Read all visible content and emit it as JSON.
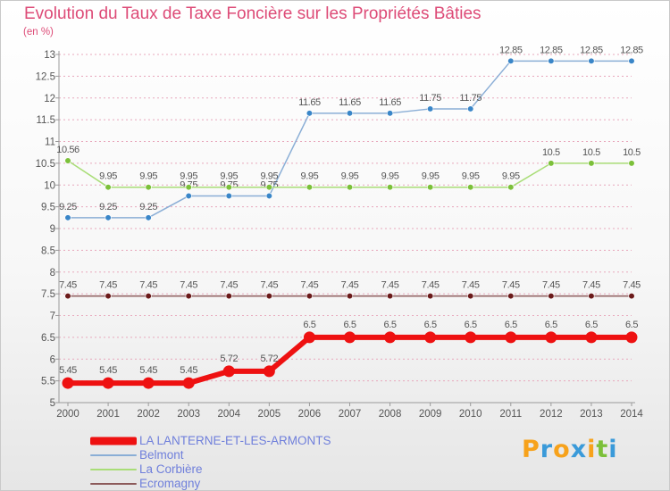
{
  "title": "Evolution du Taux de Taxe Foncière sur les Propriétés Bâties",
  "unit": "(en %)",
  "logo_text": "Proxiti",
  "colors": {
    "title": "#dd4b77",
    "grid": "#e8a8bc",
    "axis": "#9a9a9a",
    "label": "#555555"
  },
  "chart_data": {
    "type": "line",
    "title": "Evolution du Taux de Taxe Foncière sur les Propriétés Bâties",
    "ylabel": "(en %)",
    "xlabel": "",
    "ylim": [
      5,
      13
    ],
    "ytick_step": 0.5,
    "x": [
      "2000",
      "2001",
      "2002",
      "2003",
      "2004",
      "2005",
      "2006",
      "2007",
      "2008",
      "2009",
      "2010",
      "2011",
      "2012",
      "2013",
      "2014"
    ],
    "series": [
      {
        "name": "LA LANTERNE-ET-LES-ARMONTS",
        "color": "#ee1111",
        "marker": "#ee1111",
        "width": 6,
        "values": [
          5.45,
          5.45,
          5.45,
          5.45,
          5.72,
          5.72,
          6.5,
          6.5,
          6.5,
          6.5,
          6.5,
          6.5,
          6.5,
          6.5,
          6.5
        ],
        "labels": [
          "5.45",
          "5.45",
          "5.45",
          "5.45",
          "5.72",
          "5.72",
          "6.5",
          "6.5",
          "6.5",
          "6.5",
          "6.5",
          "6.5",
          "6.5",
          "6.5",
          "6.5"
        ]
      },
      {
        "name": "Belmont",
        "color": "#8aaed6",
        "marker": "#3a86c8",
        "width": 1.5,
        "values": [
          9.25,
          9.25,
          9.25,
          9.75,
          9.75,
          9.75,
          11.65,
          11.65,
          11.65,
          11.75,
          11.75,
          12.85,
          12.85,
          12.85,
          12.85
        ],
        "labels": [
          "9.25",
          "9.25",
          "9.25",
          "9.75",
          "9.75",
          "9.75",
          "11.65",
          "11.65",
          "11.65",
          "11.75",
          "11.75",
          "12.85",
          "12.85",
          "12.85",
          "12.85"
        ]
      },
      {
        "name": "La Corbière",
        "color": "#a9dd77",
        "marker": "#7cc03a",
        "width": 1.5,
        "values": [
          10.56,
          9.95,
          9.95,
          9.95,
          9.95,
          9.95,
          9.95,
          9.95,
          9.95,
          9.95,
          9.95,
          9.95,
          10.5,
          10.5,
          10.5
        ],
        "labels": [
          "10.56",
          "9.95",
          "9.95",
          "9.95",
          "9.95",
          "9.95",
          "9.95",
          "9.95",
          "9.95",
          "9.95",
          "9.95",
          "9.95",
          "10.5",
          "10.5",
          "10.5"
        ]
      },
      {
        "name": "Ecromagny",
        "color": "#8c5a5a",
        "marker": "#6b1a1a",
        "width": 1.5,
        "values": [
          7.45,
          7.45,
          7.45,
          7.45,
          7.45,
          7.45,
          7.45,
          7.45,
          7.45,
          7.45,
          7.45,
          7.45,
          7.45,
          7.45,
          7.45
        ],
        "labels": [
          "7.45",
          "7.45",
          "7.45",
          "7.45",
          "7.45",
          "7.45",
          "7.45",
          "7.45",
          "7.45",
          "7.45",
          "7.45",
          "7.45",
          "7.45",
          "7.45",
          "7.45"
        ]
      }
    ]
  }
}
